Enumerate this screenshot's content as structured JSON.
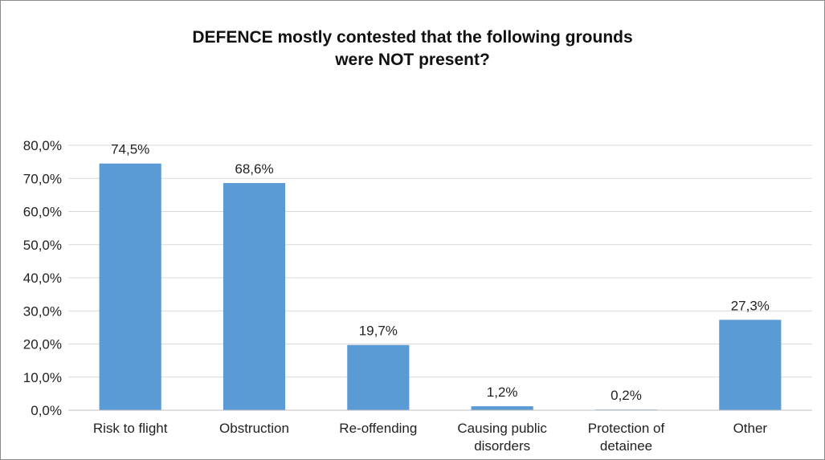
{
  "chart_data": {
    "type": "bar",
    "title_lines": [
      "DEFENCE mostly contested that the following grounds",
      "were NOT present?"
    ],
    "categories": [
      [
        "Risk to flight"
      ],
      [
        "Obstruction"
      ],
      [
        "Re-offending"
      ],
      [
        "Causing public",
        "disorders"
      ],
      [
        "Protection of",
        "detainee"
      ],
      [
        "Other"
      ]
    ],
    "values": [
      74.5,
      68.6,
      19.7,
      1.2,
      0.2,
      27.3
    ],
    "data_labels": [
      "74,5%",
      "68,6%",
      "19,7%",
      "1,2%",
      "0,2%",
      "27,3%"
    ],
    "y_ticks": [
      0,
      10,
      20,
      30,
      40,
      50,
      60,
      70,
      80
    ],
    "y_tick_labels": [
      "0,0%",
      "10,0%",
      "20,0%",
      "30,0%",
      "40,0%",
      "50,0%",
      "60,0%",
      "70,0%",
      "80,0%"
    ],
    "ylim": [
      0,
      80
    ],
    "grid": true,
    "bar_color": "#5b9bd5",
    "grid_color": "#d9d9d9",
    "axis_color": "#bfbfbf"
  }
}
